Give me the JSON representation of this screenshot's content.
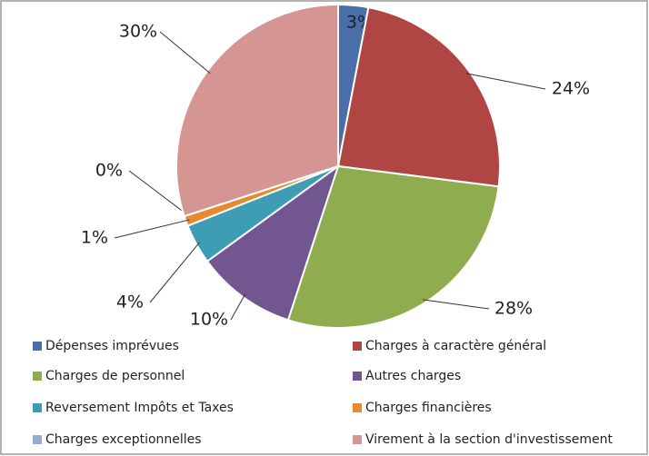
{
  "chart_data": {
    "type": "pie",
    "categories": [
      "Dépenses imprévues",
      "Charges à caractère général",
      "Charges de personnel",
      "Autres charges",
      "Reversement Impôts et Taxes",
      "Charges financières",
      "Charges exceptionnelles",
      "Virement à la section d'investissement"
    ],
    "values": [
      3,
      24,
      28,
      10,
      4,
      1,
      0,
      30
    ],
    "value_labels": [
      "3%",
      "24%",
      "28%",
      "10%",
      "4%",
      "1%",
      "0%",
      "30%"
    ],
    "colors": [
      "#4a6fa8",
      "#b04643",
      "#8fad4f",
      "#71568f",
      "#3e9cb5",
      "#e6892f",
      "#94acd6",
      "#d49593"
    ],
    "legend": "bottom"
  }
}
